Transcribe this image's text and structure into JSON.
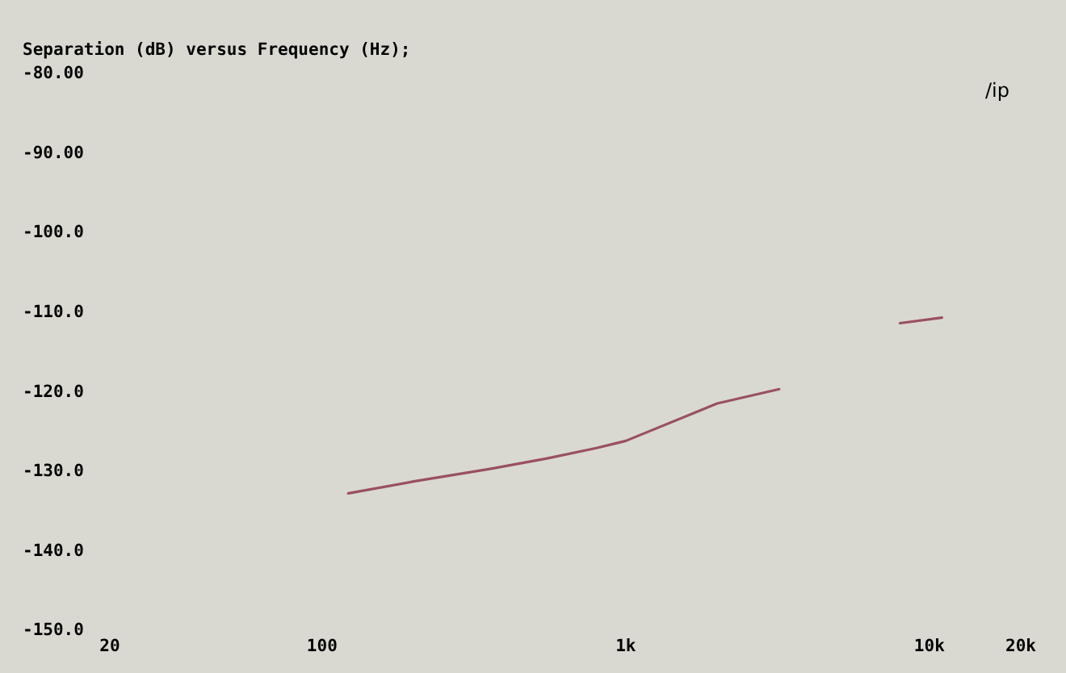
{
  "chart_data": {
    "type": "line",
    "title": "Separation (dB) versus Frequency (Hz);",
    "annotations": [
      "/ip"
    ],
    "x": [
      122,
      200,
      360,
      550,
      800,
      1000,
      2000,
      3200,
      5000,
      8000,
      11000
    ],
    "series": [
      {
        "color": "#9a5060",
        "values": [
          -132.9,
          -131.4,
          -129.8,
          -128.5,
          -127.2,
          -126.3,
          -121.6,
          -119.8,
          null,
          -111.5,
          -110.8
        ]
      }
    ],
    "log": "x",
    "xlim": [
      20,
      20000
    ],
    "xticks": [
      20,
      100,
      {
        "value": 1000,
        "label": "1k"
      },
      {
        "value": 10000,
        "label": "10k"
      },
      {
        "value": 20000,
        "label": "20k"
      }
    ],
    "ylim": [
      -150,
      -80
    ],
    "yticks": [
      {
        "value": -80,
        "label": "-80.00"
      },
      {
        "value": -90,
        "label": "-90.00"
      },
      {
        "value": -100,
        "label": "-100.0"
      },
      {
        "value": -110,
        "label": "-110.0"
      },
      {
        "value": -120,
        "label": "-120.0"
      },
      {
        "value": -130,
        "label": "-130.0"
      },
      {
        "value": -140,
        "label": "-140.0"
      },
      {
        "value": -150,
        "label": "-150.0"
      }
    ],
    "grid": false,
    "line_style": "solid",
    "marker": "none"
  }
}
